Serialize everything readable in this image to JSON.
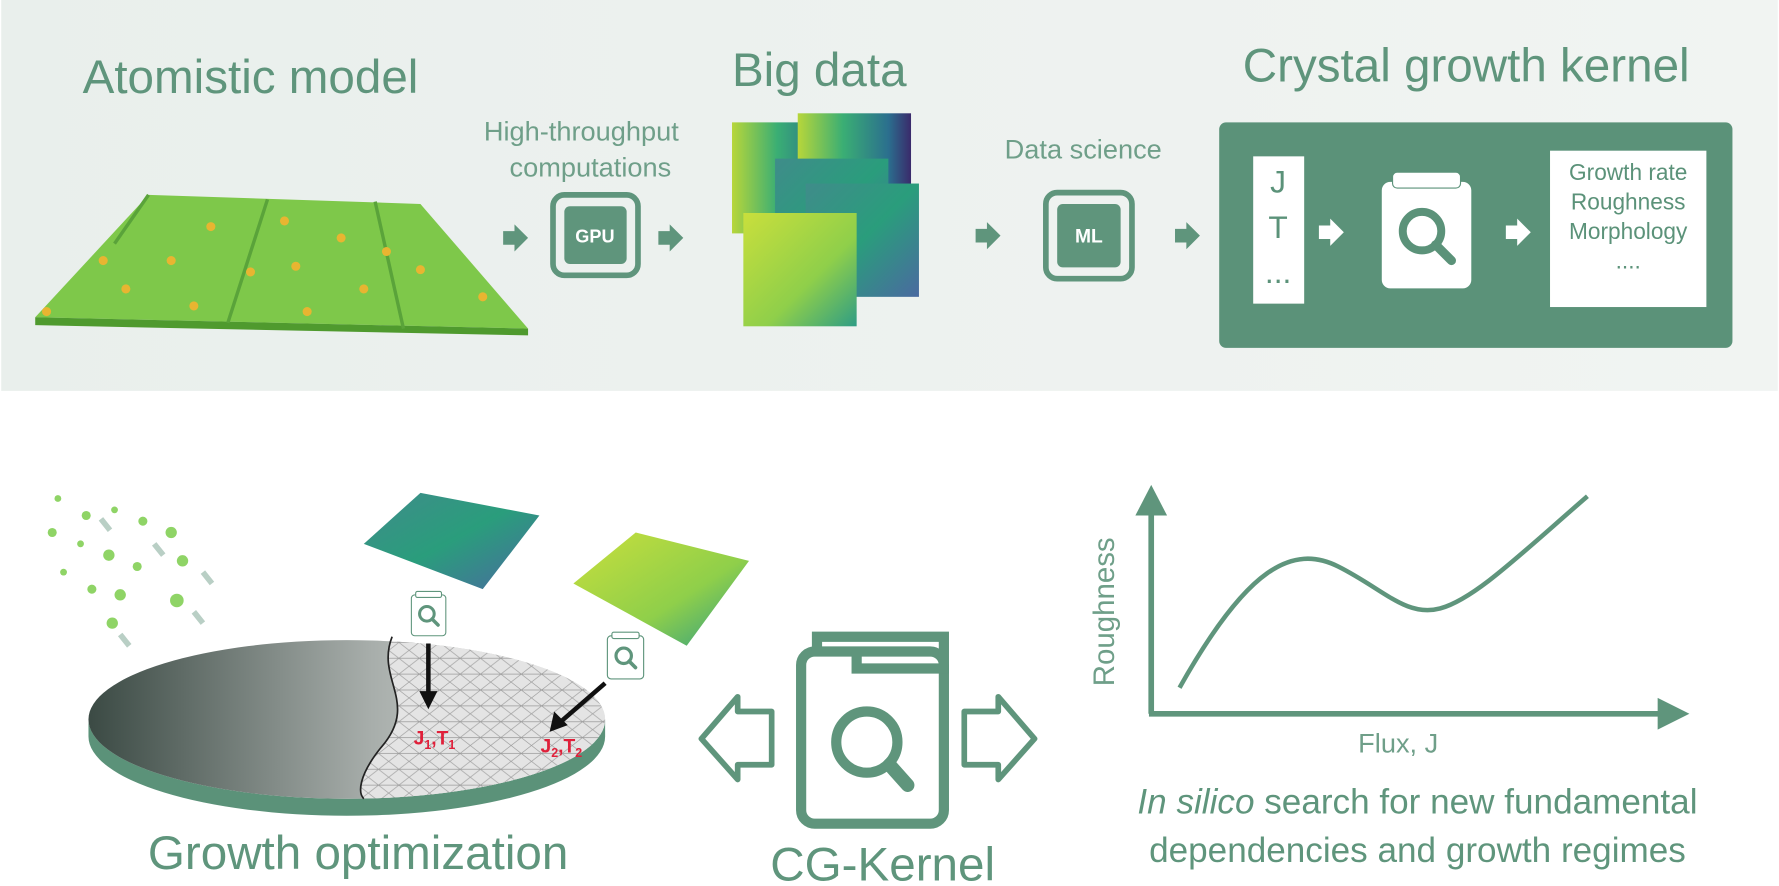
{
  "top": {
    "atomistic_title": "Atomistic model",
    "computations_label": [
      "High-throughput",
      "computations"
    ],
    "gpu": "GPU",
    "big_data_title": "Big data",
    "data_science_label": "Data science",
    "ml": "ML",
    "kernel": {
      "title": "Crystal growth kernel",
      "inputs": [
        "J",
        "T",
        "..."
      ],
      "outputs": [
        "Growth rate",
        "Roughness",
        "Morphology",
        "...."
      ]
    }
  },
  "bottom": {
    "growth_title": "Growth optimization",
    "points": [
      [
        "J",
        "1",
        ",",
        "T",
        "1"
      ],
      [
        "J",
        "2",
        ",",
        "T",
        "2"
      ]
    ],
    "kernel_label": "CG-Kernel",
    "plot": {
      "y_label": "Roughness",
      "x_label": "Flux, J"
    },
    "caption": {
      "italic": "In silico",
      "rest": " search for new fundamental",
      "line2": "dependencies and growth regimes"
    }
  }
}
